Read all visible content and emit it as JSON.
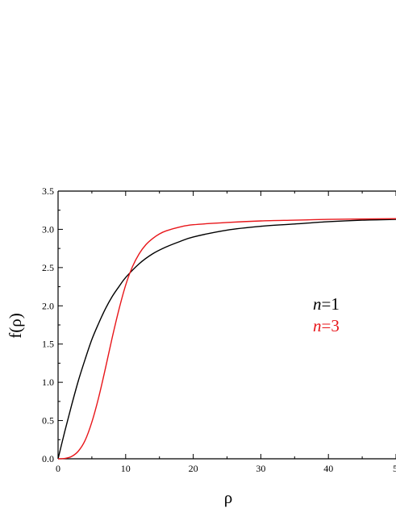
{
  "chart_data": {
    "type": "line",
    "xlabel": "ρ",
    "ylabel": "f(ρ)",
    "xlim": [
      0,
      50
    ],
    "ylim": [
      0,
      3.5
    ],
    "xticks": [
      "0",
      "10",
      "20",
      "30",
      "40",
      "5"
    ],
    "yticks": [
      "0.0",
      "0.5",
      "1.0",
      "1.5",
      "2.0",
      "2.5",
      "3.0",
      "3.5"
    ],
    "grid": false,
    "legend_position": "right",
    "series": [
      {
        "name": "n=1",
        "legend_var": "n",
        "legend_val": "=1",
        "color": "#000000",
        "x": [
          0,
          1,
          2,
          3,
          4,
          5,
          6,
          7,
          8,
          9,
          10,
          12,
          14,
          16,
          18,
          20,
          25,
          30,
          35,
          40,
          45,
          50
        ],
        "y": [
          0,
          0.36,
          0.7,
          1.02,
          1.3,
          1.56,
          1.77,
          1.96,
          2.12,
          2.25,
          2.37,
          2.55,
          2.68,
          2.77,
          2.84,
          2.9,
          2.99,
          3.04,
          3.07,
          3.1,
          3.12,
          3.13
        ]
      },
      {
        "name": "n=3",
        "legend_var": "n",
        "legend_val": "=3",
        "color": "#e8161a",
        "x": [
          0,
          1,
          2,
          3,
          4,
          5,
          6,
          7,
          8,
          9,
          10,
          11,
          12,
          13,
          14,
          15,
          16,
          18,
          20,
          25,
          30,
          35,
          40,
          45,
          50
        ],
        "y": [
          0,
          0.005,
          0.03,
          0.1,
          0.24,
          0.48,
          0.8,
          1.18,
          1.58,
          1.95,
          2.27,
          2.51,
          2.68,
          2.8,
          2.88,
          2.94,
          2.98,
          3.03,
          3.06,
          3.09,
          3.11,
          3.12,
          3.13,
          3.135,
          3.14
        ]
      }
    ]
  }
}
